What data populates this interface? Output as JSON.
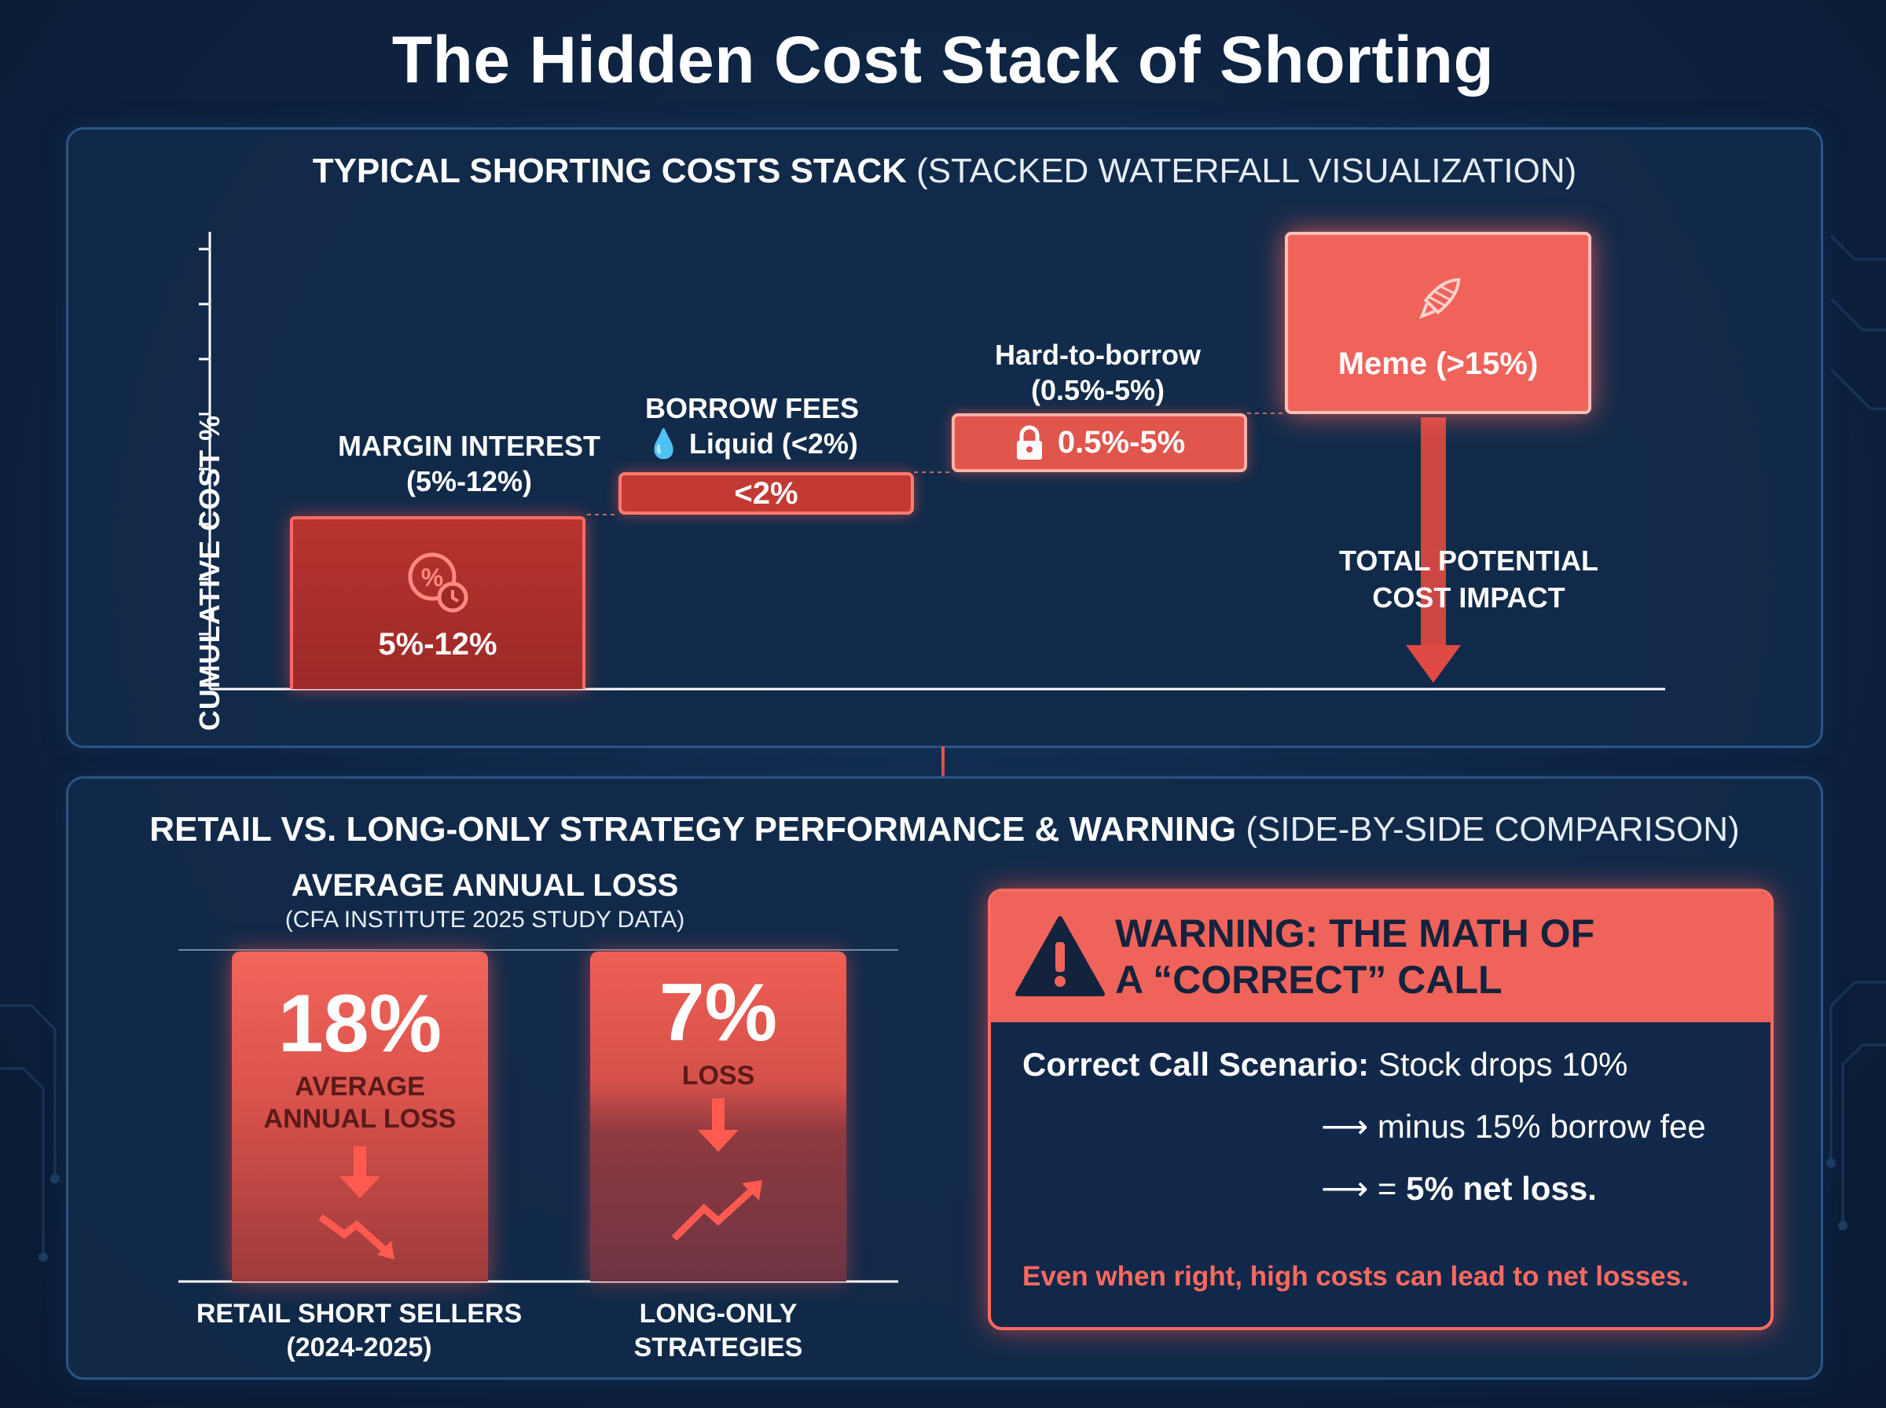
{
  "page": {
    "title": "The Hidden Cost Stack of Shorting"
  },
  "top_panel": {
    "heading_bold": "TYPICAL SHORTING COSTS STACK",
    "heading_light": "(STACKED WATERFALL VISUALIZATION)",
    "y_axis_label": "CUMULATIVE COST %"
  },
  "bottom_panel": {
    "heading_bold": "RETAIL VS. LONG-ONLY STRATEGY PERFORMANCE & WARNING",
    "heading_light": "(SIDE-BY-SIDE COMPARISON)"
  },
  "chart_data": [
    {
      "type": "bar",
      "subtype": "waterfall",
      "title": "TYPICAL SHORTING COSTS STACK (STACKED WATERFALL VISUALIZATION)",
      "ylabel": "CUMULATIVE COST %",
      "ticks_labeled": false,
      "grid": false,
      "steps": [
        {
          "name": "MARGIN INTEREST",
          "range": "(5%-12%)",
          "bar_label": "5%-12%",
          "low": 5,
          "high": 12,
          "icon": "percent-clock-icon"
        },
        {
          "name": "BORROW FEES",
          "tier": "Liquid (<2%)",
          "bar_label": "<2%",
          "high": 2,
          "icon": "droplet-icon"
        },
        {
          "name": "Hard-to-borrow",
          "range": "(0.5%-5%)",
          "bar_label": "0.5%-5%",
          "low": 0.5,
          "high": 5,
          "icon": "lock-icon"
        },
        {
          "name": "Meme",
          "bar_label": "Meme (>15%)",
          "low": 15,
          "icon": "rocket-icon"
        }
      ],
      "total_label_line1": "TOTAL POTENTIAL",
      "total_label_line2": "COST IMPACT",
      "colors": {
        "bar": "#e0554c",
        "glow": "#ff6b62",
        "axis": "#ffffff"
      }
    },
    {
      "type": "bar",
      "title": "AVERAGE ANNUAL LOSS",
      "subtitle": "(CFA INSTITUTE 2025 STUDY DATA)",
      "categories": [
        "RETAIL SHORT SELLERS (2024-2025)",
        "LONG-ONLY STRATEGIES"
      ],
      "values": [
        18,
        7
      ],
      "unit": "%",
      "bars": [
        {
          "value_label": "18%",
          "caption_line1": "AVERAGE",
          "caption_line2": "ANNUAL LOSS",
          "cat_line1": "RETAIL SHORT SELLERS",
          "cat_line2": "(2024-2025)",
          "icon": "downtrend-icon"
        },
        {
          "value_label": "7%",
          "caption_line1": "LOSS",
          "cat_line1": "LONG-ONLY",
          "cat_line2": "STRATEGIES",
          "icon": "uptrend-icon"
        }
      ]
    }
  ],
  "warning": {
    "title_line1": "WARNING: THE MATH OF",
    "title_line2": "A “CORRECT” CALL",
    "scenario_bold": "Correct Call Scenario:",
    "scenario_rest": "Stock drops 10%",
    "step1_arrow": "⟶",
    "step1": "minus 15% borrow fee",
    "step2_arrow": "⟶",
    "step2_prefix": "=",
    "step2_bold": "5% net loss.",
    "footer": "Even when right, high costs can lead to net losses.",
    "colors": {
      "accent": "#f0635a",
      "text_dark": "#14233d",
      "footer": "#ff6a5e"
    }
  }
}
